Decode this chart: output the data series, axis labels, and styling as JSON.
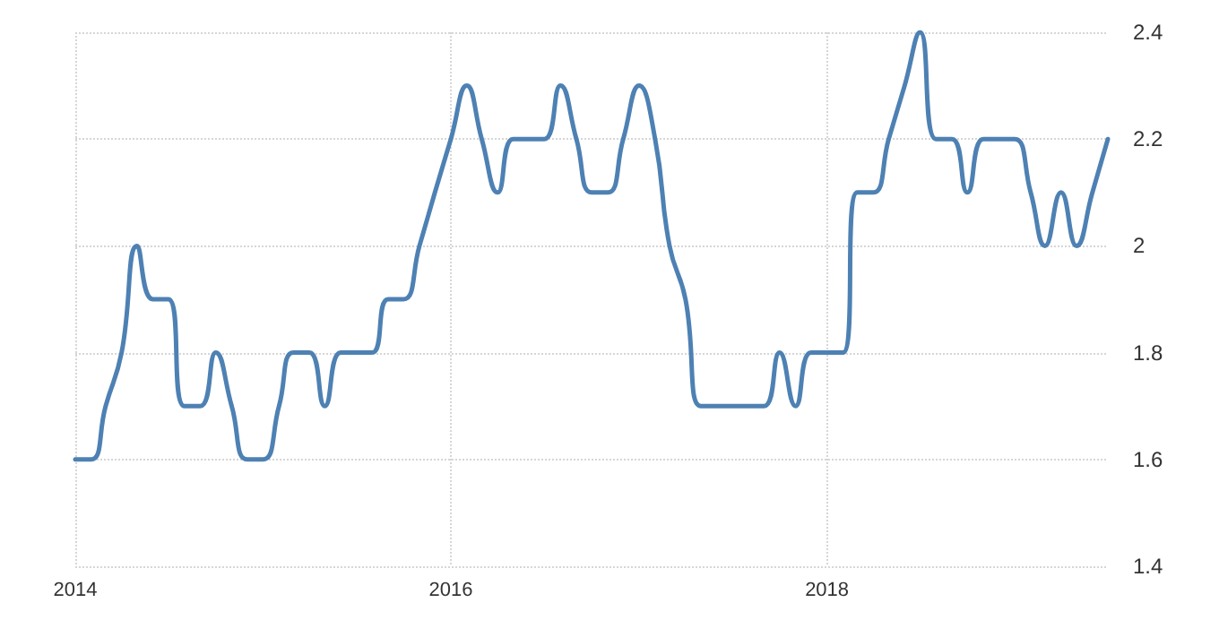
{
  "chart_data": {
    "type": "line",
    "x": [
      "2014-01",
      "2014-02",
      "2014-03",
      "2014-04",
      "2014-05",
      "2014-06",
      "2014-07",
      "2014-08",
      "2014-09",
      "2014-10",
      "2014-11",
      "2014-12",
      "2015-01",
      "2015-02",
      "2015-03",
      "2015-04",
      "2015-05",
      "2015-06",
      "2015-07",
      "2015-08",
      "2015-09",
      "2015-10",
      "2015-11",
      "2015-12",
      "2016-01",
      "2016-02",
      "2016-03",
      "2016-04",
      "2016-05",
      "2016-06",
      "2016-07",
      "2016-08",
      "2016-09",
      "2016-10",
      "2016-11",
      "2016-12",
      "2017-01",
      "2017-02",
      "2017-03",
      "2017-04",
      "2017-05",
      "2017-06",
      "2017-07",
      "2017-08",
      "2017-09",
      "2017-10",
      "2017-11",
      "2017-12",
      "2018-01",
      "2018-02",
      "2018-03",
      "2018-04",
      "2018-05",
      "2018-06",
      "2018-07",
      "2018-08",
      "2018-09",
      "2018-10",
      "2018-11",
      "2018-12",
      "2019-01",
      "2019-02",
      "2019-03",
      "2019-04",
      "2019-05",
      "2019-06",
      "2019-07"
    ],
    "series": [
      {
        "color": "#4e81b3",
        "values": [
          1.6,
          1.6,
          1.7,
          1.8,
          2.0,
          1.9,
          1.9,
          1.7,
          1.7,
          1.8,
          1.7,
          1.6,
          1.6,
          1.7,
          1.8,
          1.8,
          1.7,
          1.8,
          1.8,
          1.8,
          1.9,
          1.9,
          2.0,
          2.1,
          2.2,
          2.3,
          2.2,
          2.1,
          2.2,
          2.2,
          2.2,
          2.3,
          2.2,
          2.1,
          2.1,
          2.2,
          2.3,
          2.2,
          2.0,
          1.9,
          1.7,
          1.7,
          1.7,
          1.7,
          1.7,
          1.8,
          1.7,
          1.8,
          1.8,
          1.8,
          2.1,
          2.1,
          2.2,
          2.3,
          2.4,
          2.2,
          2.2,
          2.1,
          2.2,
          2.2,
          2.2,
          2.1,
          2.0,
          2.1,
          2.0,
          2.1,
          2.2
        ]
      }
    ],
    "xlim": [
      "2014-01",
      "2019-07"
    ],
    "xticks": [
      "2014",
      "2016",
      "2018"
    ],
    "ylim": [
      1.4,
      2.4
    ],
    "yticks": [
      {
        "value": 1.4,
        "label": "1.4"
      },
      {
        "value": 1.6,
        "label": "1.6"
      },
      {
        "value": 1.8,
        "label": "1.8"
      },
      {
        "value": 2,
        "label": "2"
      },
      {
        "value": 2.2,
        "label": "2.2"
      },
      {
        "value": 2.4,
        "label": "2.4"
      }
    ],
    "grid": true,
    "marker": "none",
    "line_style": "solid"
  }
}
